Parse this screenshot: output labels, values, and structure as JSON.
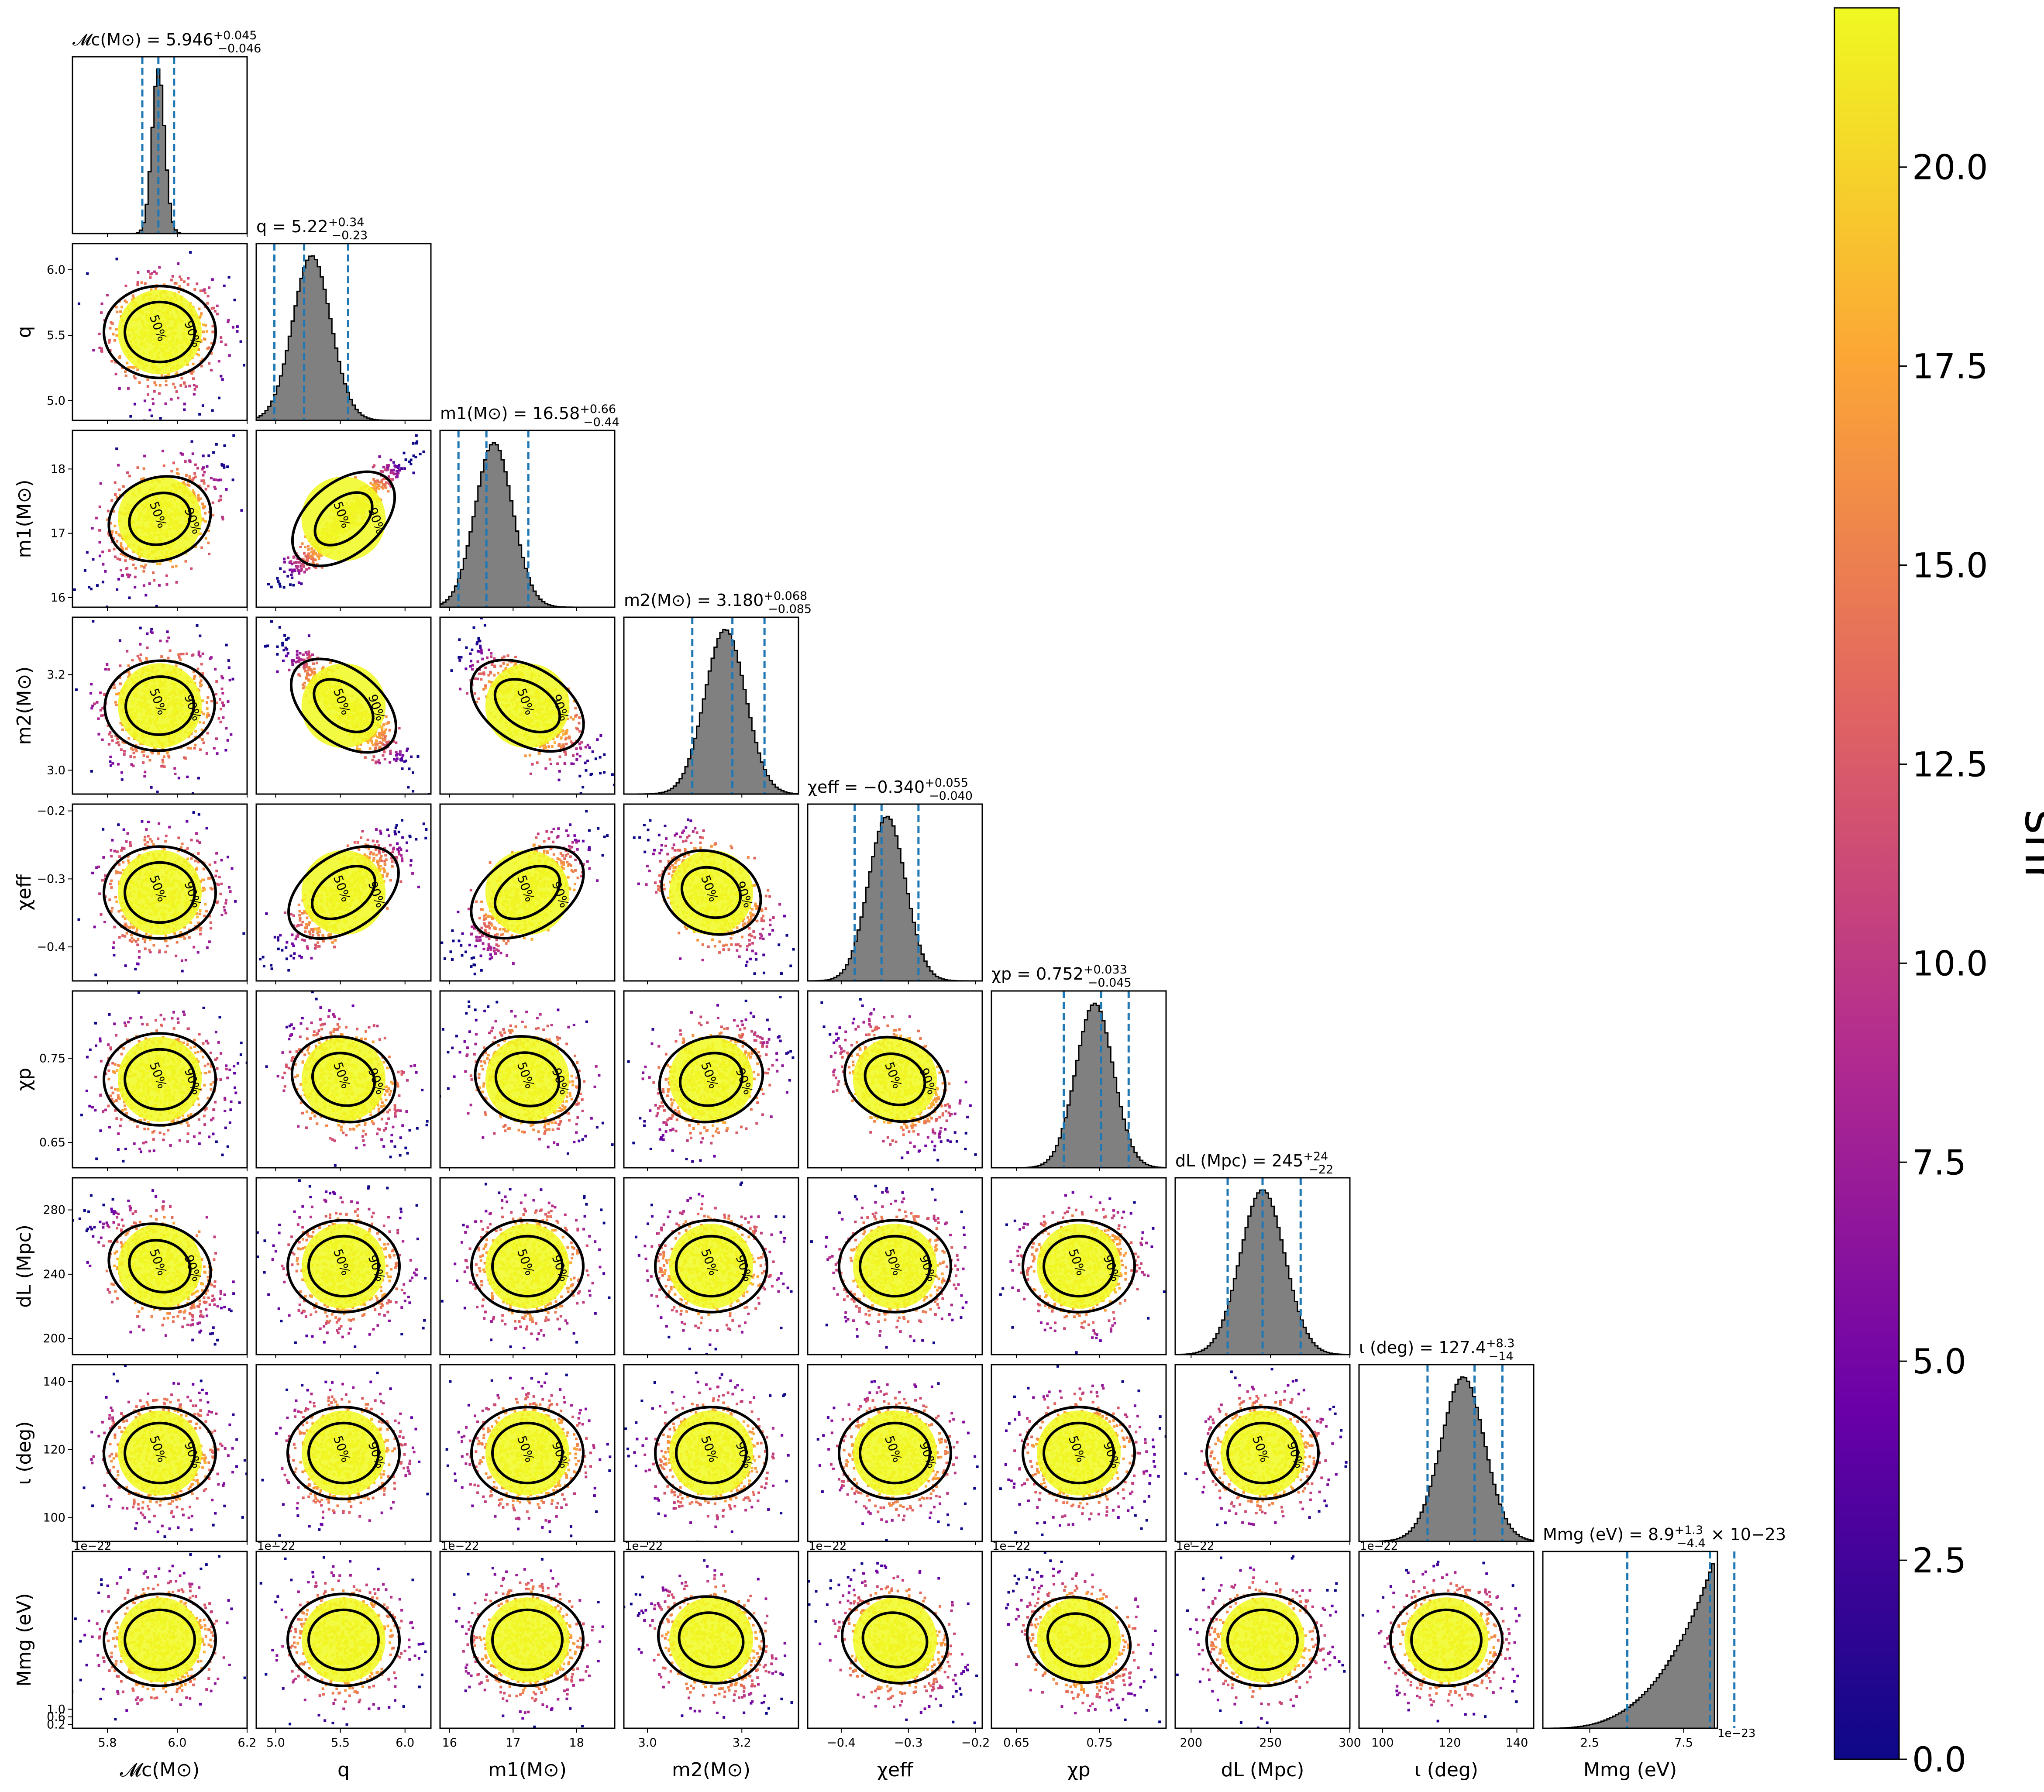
{
  "chart_data": {
    "type": "corner",
    "description_of_panels": "diagonal: 1-D marginal histograms with median and 5%/95% dashed lines; lower triangle: 2-D scatter coloured by snr with 50% and 90% credible contours",
    "parameters": [
      {
        "name": "Mc",
        "label": "𝓜c(M⊙)",
        "range": [
          5.7,
          6.2
        ],
        "ticks": [
          "5.8",
          "6.0",
          "6.2"
        ],
        "title": "𝓜c(M⊙) = 5.946",
        "median": 5.946,
        "err_plus": 0.045,
        "err_minus": 0.046,
        "err_plus_text": "+0.045",
        "err_minus_text": "−0.046",
        "sigma": 0.018,
        "skew": 0
      },
      {
        "name": "q",
        "label": "q",
        "range": [
          4.85,
          6.2
        ],
        "ticks": [
          "5.0",
          "5.5",
          "6.0"
        ],
        "yticks": [
          "5.0",
          "5.5",
          "6.0"
        ],
        "title": "q = 5.22",
        "median": 5.22,
        "err_plus": 0.34,
        "err_minus": 0.23,
        "err_plus_text": "+0.34",
        "err_minus_text": "−0.23",
        "sigma": 0.16,
        "skew": 0.35
      },
      {
        "name": "m1",
        "label": "m1(M⊙)",
        "range": [
          15.85,
          18.6
        ],
        "ticks": [
          "16",
          "17",
          "18"
        ],
        "title": "m1(M⊙) = 16.58",
        "median": 16.58,
        "err_plus": 0.66,
        "err_minus": 0.44,
        "err_plus_text": "+0.66",
        "err_minus_text": "−0.44",
        "sigma": 0.32,
        "skew": 0.35
      },
      {
        "name": "m2",
        "label": "m2(M⊙)",
        "range": [
          2.95,
          3.32
        ],
        "ticks": [
          "3.0",
          "3.2"
        ],
        "title": "m2(M⊙) = 3.180",
        "median": 3.18,
        "err_plus": 0.068,
        "err_minus": 0.085,
        "err_plus_text": "+0.068",
        "err_minus_text": "−0.085",
        "sigma": 0.046,
        "skew": -0.3
      },
      {
        "name": "chi_eff",
        "label": "χeff",
        "range": [
          -0.45,
          -0.19
        ],
        "ticks": [
          "−0.4",
          "−0.3",
          "−0.2"
        ],
        "title": "χeff = −0.340",
        "median": -0.34,
        "err_plus": 0.055,
        "err_minus": 0.04,
        "err_plus_text": "+0.055",
        "err_minus_text": "−0.040",
        "sigma": 0.029,
        "skew": 0.25
      },
      {
        "name": "chi_p",
        "label": "χp",
        "range": [
          0.62,
          0.83
        ],
        "ticks": [
          "0.65",
          "0.75"
        ],
        "title": "χp = 0.752",
        "median": 0.752,
        "err_plus": 0.033,
        "err_minus": 0.045,
        "err_plus_text": "+0.033",
        "err_minus_text": "−0.045",
        "sigma": 0.024,
        "skew": -0.3
      },
      {
        "name": "dL",
        "label": "dL (Mpc)",
        "range": [
          190,
          300
        ],
        "ticks": [
          "200",
          "240",
          "280"
        ],
        "xticks": [
          "200",
          "250",
          "300"
        ],
        "title": "dL (Mpc) = 245",
        "median": 245,
        "err_plus": 24,
        "err_minus": 22,
        "err_plus_text": "+24",
        "err_minus_text": "−22",
        "sigma": 14,
        "skew": 0
      },
      {
        "name": "iota",
        "label": "ι (deg)",
        "range": [
          93,
          145
        ],
        "ticks": [
          "100",
          "120",
          "140"
        ],
        "title": "ι (deg) = 127.4",
        "median": 127.4,
        "err_plus": 8.3,
        "err_minus": 14,
        "err_plus_text": "+8.3",
        "err_minus_text": "−14",
        "sigma": 7.5,
        "skew": -0.5
      },
      {
        "name": "Mmg",
        "label": "Mmg (eV)",
        "range": [
          0,
          9.3
        ],
        "ticks": [
          "0.2",
          "0.6",
          "1.0"
        ],
        "xticks": [
          "2.5",
          "7.5"
        ],
        "offset_text_y": "1e−22",
        "offset_text_x": "1e−23",
        "title": "Mmg (eV) = 8.9",
        "median": 8.9,
        "err_plus": 1.3,
        "err_minus": 4.4,
        "err_plus_text": "+1.3",
        "err_minus_text": "−4.4",
        "title_suffix": "× 10−23",
        "sigma": 2.2,
        "skew": -1
      }
    ],
    "contour_labels": [
      "50%",
      "90%"
    ],
    "colorbar": {
      "label": "snr",
      "range": [
        0,
        22
      ],
      "ticks": [
        "0.0",
        "2.5",
        "5.0",
        "7.5",
        "10.0",
        "12.5",
        "15.0",
        "17.5",
        "20.0"
      ],
      "colormap": "plasma"
    },
    "colors": {
      "histogram_fill": "#808080",
      "histogram_edge": "#000000",
      "quantile_line": "#1f77b4",
      "contour": "#000000",
      "colormap_stops": [
        "#0d0887",
        "#6a00a8",
        "#b12a90",
        "#e16462",
        "#fca636",
        "#f0f921"
      ]
    }
  }
}
